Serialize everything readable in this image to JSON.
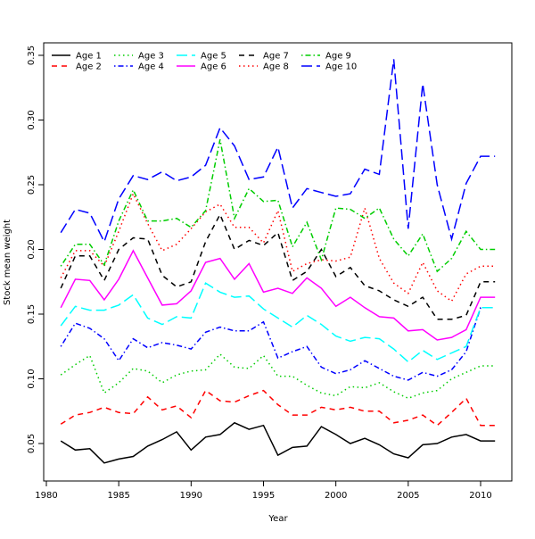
{
  "chart_data": {
    "type": "line",
    "title": "",
    "xlabel": "Year",
    "ylabel": "Stock mean weight",
    "xlim": [
      1980,
      2012
    ],
    "ylim": [
      0.025,
      0.36
    ],
    "xticks": [
      1980,
      1985,
      1990,
      1995,
      2000,
      2005,
      2010
    ],
    "yticks": [
      0.05,
      0.1,
      0.15,
      0.2,
      0.25,
      0.3,
      0.35
    ],
    "grid": false,
    "legend_position": "top-left",
    "x": [
      1981,
      1982,
      1983,
      1984,
      1985,
      1986,
      1987,
      1988,
      1989,
      1990,
      1991,
      1992,
      1993,
      1994,
      1995,
      1996,
      1997,
      1998,
      1999,
      2000,
      2001,
      2002,
      2003,
      2004,
      2005,
      2006,
      2007,
      2008,
      2009,
      2010,
      2011
    ],
    "series": [
      {
        "name": "Age 1",
        "color": "#000000",
        "dash": "solid",
        "values": [
          0.052,
          0.045,
          0.046,
          0.035,
          0.038,
          0.04,
          0.048,
          0.053,
          0.059,
          0.045,
          0.055,
          0.057,
          0.066,
          0.061,
          0.064,
          0.041,
          0.047,
          0.048,
          0.063,
          0.057,
          0.05,
          0.054,
          0.049,
          0.042,
          0.039,
          0.049,
          0.05,
          0.055,
          0.057,
          0.052,
          0.052
        ]
      },
      {
        "name": "Age 2",
        "color": "#ff0000",
        "dash": "dashed",
        "values": [
          0.065,
          0.072,
          0.074,
          0.078,
          0.074,
          0.073,
          0.086,
          0.076,
          0.079,
          0.07,
          0.091,
          0.083,
          0.082,
          0.087,
          0.091,
          0.08,
          0.072,
          0.072,
          0.078,
          0.076,
          0.078,
          0.075,
          0.075,
          0.066,
          0.068,
          0.072,
          0.064,
          0.074,
          0.085,
          0.064,
          0.064
        ]
      },
      {
        "name": "Age 3",
        "color": "#00cd00",
        "dash": "dotted",
        "values": [
          0.103,
          0.111,
          0.118,
          0.089,
          0.097,
          0.108,
          0.106,
          0.097,
          0.103,
          0.106,
          0.107,
          0.119,
          0.109,
          0.108,
          0.118,
          0.102,
          0.102,
          0.095,
          0.089,
          0.087,
          0.094,
          0.093,
          0.097,
          0.09,
          0.085,
          0.089,
          0.091,
          0.1,
          0.105,
          0.11,
          0.11
        ]
      },
      {
        "name": "Age 4",
        "color": "#0000ff",
        "dash": "dotdash",
        "values": [
          0.125,
          0.143,
          0.139,
          0.131,
          0.114,
          0.131,
          0.124,
          0.128,
          0.126,
          0.123,
          0.136,
          0.14,
          0.137,
          0.137,
          0.144,
          0.116,
          0.121,
          0.125,
          0.109,
          0.104,
          0.107,
          0.114,
          0.108,
          0.102,
          0.099,
          0.105,
          0.102,
          0.107,
          0.121,
          0.155,
          0.155
        ]
      },
      {
        "name": "Age 5",
        "color": "#00ffff",
        "dash": "longdash",
        "values": [
          0.141,
          0.156,
          0.153,
          0.153,
          0.157,
          0.165,
          0.147,
          0.142,
          0.148,
          0.147,
          0.174,
          0.167,
          0.163,
          0.164,
          0.154,
          0.147,
          0.14,
          0.149,
          0.142,
          0.133,
          0.129,
          0.132,
          0.131,
          0.123,
          0.113,
          0.122,
          0.115,
          0.12,
          0.125,
          0.155,
          0.155
        ]
      },
      {
        "name": "Age 6",
        "color": "#ff00ff",
        "dash": "solid",
        "values": [
          0.155,
          0.177,
          0.176,
          0.161,
          0.177,
          0.199,
          0.178,
          0.157,
          0.158,
          0.168,
          0.19,
          0.193,
          0.177,
          0.189,
          0.167,
          0.17,
          0.166,
          0.178,
          0.17,
          0.156,
          0.163,
          0.155,
          0.148,
          0.147,
          0.137,
          0.138,
          0.13,
          0.132,
          0.138,
          0.163,
          0.163
        ]
      },
      {
        "name": "Age 7",
        "color": "#000000",
        "dash": "dashed",
        "values": [
          0.17,
          0.195,
          0.195,
          0.176,
          0.2,
          0.209,
          0.208,
          0.18,
          0.171,
          0.175,
          0.206,
          0.227,
          0.2,
          0.207,
          0.203,
          0.213,
          0.176,
          0.183,
          0.2,
          0.179,
          0.186,
          0.172,
          0.168,
          0.161,
          0.156,
          0.163,
          0.146,
          0.146,
          0.149,
          0.175,
          0.175
        ]
      },
      {
        "name": "Age 8",
        "color": "#ff0000",
        "dash": "dotted",
        "values": [
          0.178,
          0.199,
          0.199,
          0.187,
          0.214,
          0.243,
          0.22,
          0.199,
          0.204,
          0.216,
          0.229,
          0.235,
          0.217,
          0.217,
          0.205,
          0.23,
          0.183,
          0.189,
          0.192,
          0.191,
          0.194,
          0.232,
          0.193,
          0.174,
          0.166,
          0.19,
          0.168,
          0.16,
          0.181,
          0.187,
          0.187
        ]
      },
      {
        "name": "Age 9",
        "color": "#00cd00",
        "dash": "dotdash",
        "values": [
          0.187,
          0.204,
          0.204,
          0.188,
          0.222,
          0.246,
          0.222,
          0.222,
          0.224,
          0.217,
          0.23,
          0.285,
          0.224,
          0.247,
          0.237,
          0.238,
          0.202,
          0.221,
          0.192,
          0.232,
          0.231,
          0.224,
          0.232,
          0.208,
          0.195,
          0.212,
          0.183,
          0.193,
          0.214,
          0.2,
          0.2
        ]
      },
      {
        "name": "Age 10",
        "color": "#0000ff",
        "dash": "longdash",
        "values": [
          0.213,
          0.231,
          0.228,
          0.206,
          0.239,
          0.257,
          0.254,
          0.26,
          0.253,
          0.256,
          0.265,
          0.294,
          0.28,
          0.254,
          0.256,
          0.279,
          0.232,
          0.247,
          0.244,
          0.241,
          0.243,
          0.262,
          0.258,
          0.347,
          0.216,
          0.328,
          0.25,
          0.208,
          0.251,
          0.272,
          0.272
        ]
      }
    ]
  }
}
